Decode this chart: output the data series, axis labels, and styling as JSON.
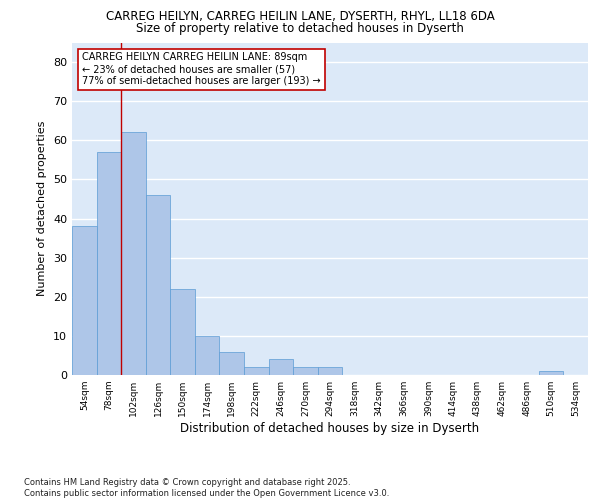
{
  "title1": "CARREG HEILYN, CARREG HEILIN LANE, DYSERTH, RHYL, LL18 6DA",
  "title2": "Size of property relative to detached houses in Dyserth",
  "xlabel": "Distribution of detached houses by size in Dyserth",
  "ylabel": "Number of detached properties",
  "bin_labels": [
    "54sqm",
    "78sqm",
    "102sqm",
    "126sqm",
    "150sqm",
    "174sqm",
    "198sqm",
    "222sqm",
    "246sqm",
    "270sqm",
    "294sqm",
    "318sqm",
    "342sqm",
    "366sqm",
    "390sqm",
    "414sqm",
    "438sqm",
    "462sqm",
    "486sqm",
    "510sqm",
    "534sqm"
  ],
  "bar_values": [
    38,
    57,
    62,
    46,
    22,
    10,
    6,
    2,
    4,
    2,
    2,
    0,
    0,
    0,
    0,
    0,
    0,
    0,
    0,
    1,
    0
  ],
  "bar_color": "#aec6e8",
  "bar_edgecolor": "#5b9bd5",
  "background_color": "#dce9f8",
  "grid_color": "#ffffff",
  "vline_color": "#c00000",
  "annotation_text": "CARREG HEILYN CARREG HEILIN LANE: 89sqm\n← 23% of detached houses are smaller (57)\n77% of semi-detached houses are larger (193) →",
  "annotation_box_edgecolor": "#c00000",
  "ylim": [
    0,
    85
  ],
  "yticks": [
    0,
    10,
    20,
    30,
    40,
    50,
    60,
    70,
    80
  ],
  "footer_text": "Contains HM Land Registry data © Crown copyright and database right 2025.\nContains public sector information licensed under the Open Government Licence v3.0."
}
